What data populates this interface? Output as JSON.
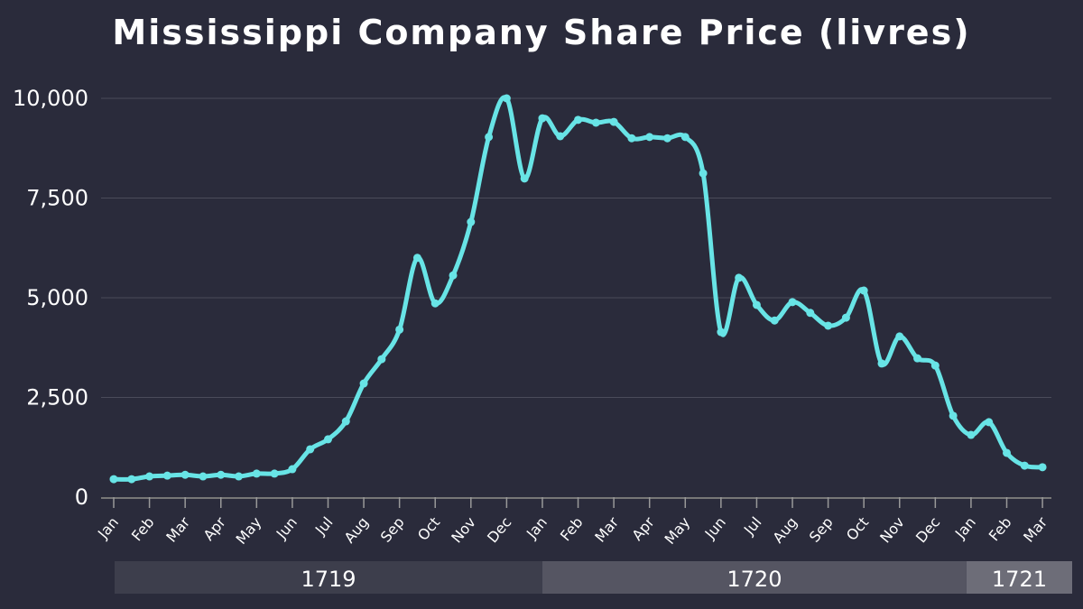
{
  "chart_data": {
    "type": "line",
    "title": "Mississippi Company Share Price (livres)",
    "xlabel": "",
    "ylabel": "",
    "ylim": [
      0,
      10000
    ],
    "yticks": [
      0,
      2500,
      5000,
      7500,
      10000
    ],
    "ytick_labels": [
      "0",
      "2,500",
      "5,000",
      "7,500",
      "10,000"
    ],
    "grid": true,
    "line_color": "#68e4e6",
    "x_tick_labels": [
      "Jan",
      "Feb",
      "Mar",
      "Apr",
      "May",
      "Jun",
      "Jul",
      "Aug",
      "Sep",
      "Oct",
      "Nov",
      "Dec",
      "Jan",
      "Feb",
      "Mar",
      "Apr",
      "May",
      "Jun",
      "Jul",
      "Aug",
      "Sep",
      "Oct",
      "Nov",
      "Dec",
      "Jan",
      "Feb",
      "Mar"
    ],
    "years": [
      {
        "label": "1719",
        "months": 12,
        "color": "#3d3e4c"
      },
      {
        "label": "1720",
        "months": 12,
        "color": "#555562"
      },
      {
        "label": "1721",
        "months": 3,
        "color": "#6d6d78"
      }
    ],
    "series": [
      {
        "values": [
          450,
          450,
          520,
          540,
          560,
          520,
          560,
          520,
          590,
          590,
          700,
          1200,
          1450,
          1900,
          2850,
          3460,
          4200,
          6000,
          4860,
          5560,
          6900,
          9030,
          10000,
          7990,
          9500,
          9050,
          9460,
          9390,
          9410,
          9000,
          9030,
          9000,
          9030,
          8120,
          4140,
          5500,
          4820,
          4430,
          4890,
          4620,
          4300,
          4500,
          5180,
          3350,
          4030,
          3480,
          3300,
          2040,
          1560,
          1880,
          1110,
          790,
          750
        ]
      }
    ]
  }
}
